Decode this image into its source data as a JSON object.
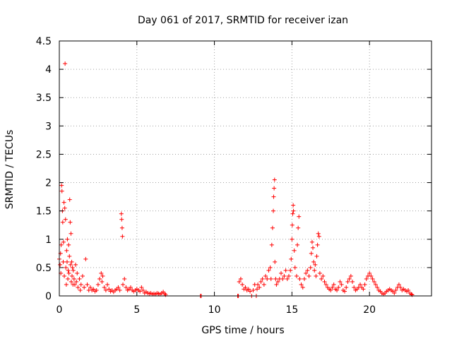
{
  "chart_data": {
    "type": "scatter",
    "title": "Day 061 of 2017, SRMTID for receiver izan",
    "xlabel": "GPS time / hours",
    "ylabel": "SRMTID / TECUs",
    "xlim": [
      0,
      24
    ],
    "ylim": [
      0,
      4.5
    ],
    "xticks": [
      0,
      5,
      10,
      15,
      20
    ],
    "xtick_labels": [
      "0",
      "5",
      "10",
      "15",
      "20"
    ],
    "yticks": [
      0,
      0.5,
      1,
      1.5,
      2,
      2.5,
      3,
      3.5,
      4,
      4.5
    ],
    "ytick_labels": [
      "0",
      "0.5",
      "1",
      "1.5",
      "2",
      "2.5",
      "3",
      "3.5",
      "4",
      "4.5"
    ],
    "grid": true,
    "marker": "+",
    "color": "#ff0000",
    "series": [
      {
        "name": "SRMTID",
        "points": [
          [
            0.0,
            0.65
          ],
          [
            0.05,
            0.55
          ],
          [
            0.08,
            0.75
          ],
          [
            0.1,
            0.4
          ],
          [
            0.12,
            0.9
          ],
          [
            0.15,
            1.95
          ],
          [
            0.17,
            1.85
          ],
          [
            0.2,
            1.5
          ],
          [
            0.22,
            1.3
          ],
          [
            0.25,
            0.6
          ],
          [
            0.27,
            0.95
          ],
          [
            0.3,
            1.65
          ],
          [
            0.32,
            0.35
          ],
          [
            0.35,
            1.55
          ],
          [
            0.37,
            4.1
          ],
          [
            0.4,
            1.35
          ],
          [
            0.42,
            0.5
          ],
          [
            0.45,
            0.2
          ],
          [
            0.47,
            0.8
          ],
          [
            0.5,
            0.6
          ],
          [
            0.52,
            1.0
          ],
          [
            0.55,
            0.3
          ],
          [
            0.57,
            0.45
          ],
          [
            0.6,
            0.9
          ],
          [
            0.62,
            0.4
          ],
          [
            0.65,
            0.7
          ],
          [
            0.67,
            1.7
          ],
          [
            0.7,
            1.3
          ],
          [
            0.72,
            0.55
          ],
          [
            0.75,
            1.1
          ],
          [
            0.77,
            0.25
          ],
          [
            0.8,
            0.6
          ],
          [
            0.82,
            0.35
          ],
          [
            0.85,
            0.5
          ],
          [
            0.88,
            0.2
          ],
          [
            0.9,
            0.45
          ],
          [
            0.95,
            0.3
          ],
          [
            1.0,
            0.2
          ],
          [
            1.05,
            0.55
          ],
          [
            1.1,
            0.25
          ],
          [
            1.15,
            0.4
          ],
          [
            1.2,
            0.15
          ],
          [
            1.3,
            0.3
          ],
          [
            1.35,
            0.1
          ],
          [
            1.4,
            0.2
          ],
          [
            1.5,
            0.35
          ],
          [
            1.6,
            0.15
          ],
          [
            1.7,
            0.65
          ],
          [
            1.8,
            0.2
          ],
          [
            1.9,
            0.1
          ],
          [
            2.0,
            0.15
          ],
          [
            2.1,
            0.1
          ],
          [
            2.2,
            0.12
          ],
          [
            2.3,
            0.08
          ],
          [
            2.4,
            0.1
          ],
          [
            2.5,
            0.2
          ],
          [
            2.6,
            0.3
          ],
          [
            2.7,
            0.4
          ],
          [
            2.75,
            0.25
          ],
          [
            2.8,
            0.35
          ],
          [
            2.9,
            0.15
          ],
          [
            3.0,
            0.1
          ],
          [
            3.1,
            0.2
          ],
          [
            3.2,
            0.12
          ],
          [
            3.3,
            0.08
          ],
          [
            3.4,
            0.1
          ],
          [
            3.5,
            0.07
          ],
          [
            3.6,
            0.1
          ],
          [
            3.7,
            0.12
          ],
          [
            3.8,
            0.15
          ],
          [
            3.9,
            0.1
          ],
          [
            4.0,
            1.45
          ],
          [
            4.02,
            1.35
          ],
          [
            4.05,
            1.2
          ],
          [
            4.07,
            1.05
          ],
          [
            4.1,
            0.2
          ],
          [
            4.2,
            0.3
          ],
          [
            4.3,
            0.15
          ],
          [
            4.4,
            0.1
          ],
          [
            4.5,
            0.12
          ],
          [
            4.6,
            0.15
          ],
          [
            4.7,
            0.1
          ],
          [
            4.8,
            0.08
          ],
          [
            4.9,
            0.1
          ],
          [
            5.0,
            0.12
          ],
          [
            5.1,
            0.1
          ],
          [
            5.2,
            0.08
          ],
          [
            5.3,
            0.15
          ],
          [
            5.4,
            0.1
          ],
          [
            5.5,
            0.05
          ],
          [
            5.6,
            0.07
          ],
          [
            5.7,
            0.05
          ],
          [
            5.8,
            0.04
          ],
          [
            5.9,
            0.05
          ],
          [
            6.0,
            0.03
          ],
          [
            6.1,
            0.04
          ],
          [
            6.2,
            0.03
          ],
          [
            6.3,
            0.05
          ],
          [
            6.4,
            0.04
          ],
          [
            6.5,
            0.03
          ],
          [
            6.6,
            0.05
          ],
          [
            6.7,
            0.07
          ],
          [
            6.8,
            0.04
          ],
          [
            6.85,
            0.02
          ],
          [
            9.1,
            0.0
          ],
          [
            9.15,
            0.0
          ],
          [
            11.5,
            0.0
          ],
          [
            11.55,
            0.0
          ],
          [
            11.6,
            0.25
          ],
          [
            11.7,
            0.3
          ],
          [
            11.8,
            0.2
          ],
          [
            11.9,
            0.12
          ],
          [
            12.0,
            0.15
          ],
          [
            12.1,
            0.1
          ],
          [
            12.2,
            0.12
          ],
          [
            12.3,
            0.08
          ],
          [
            12.4,
            0.0
          ],
          [
            12.5,
            0.1
          ],
          [
            12.6,
            0.2
          ],
          [
            12.7,
            0.0
          ],
          [
            12.75,
            0.12
          ],
          [
            12.8,
            0.2
          ],
          [
            12.9,
            0.15
          ],
          [
            13.0,
            0.25
          ],
          [
            13.1,
            0.3
          ],
          [
            13.2,
            0.2
          ],
          [
            13.3,
            0.35
          ],
          [
            13.4,
            0.3
          ],
          [
            13.5,
            0.45
          ],
          [
            13.6,
            0.5
          ],
          [
            13.65,
            0.3
          ],
          [
            13.7,
            0.9
          ],
          [
            13.75,
            1.2
          ],
          [
            13.8,
            1.5
          ],
          [
            13.82,
            1.75
          ],
          [
            13.85,
            1.9
          ],
          [
            13.88,
            2.05
          ],
          [
            13.9,
            0.6
          ],
          [
            13.95,
            0.3
          ],
          [
            14.0,
            0.2
          ],
          [
            14.1,
            0.25
          ],
          [
            14.2,
            0.3
          ],
          [
            14.3,
            0.4
          ],
          [
            14.4,
            0.3
          ],
          [
            14.5,
            0.35
          ],
          [
            14.6,
            0.45
          ],
          [
            14.7,
            0.3
          ],
          [
            14.8,
            0.35
          ],
          [
            14.9,
            0.45
          ],
          [
            14.95,
            0.65
          ],
          [
            15.0,
            1.0
          ],
          [
            15.02,
            1.25
          ],
          [
            15.05,
            1.45
          ],
          [
            15.08,
            1.6
          ],
          [
            15.1,
            1.5
          ],
          [
            15.15,
            0.8
          ],
          [
            15.2,
            0.5
          ],
          [
            15.3,
            0.35
          ],
          [
            15.35,
            0.9
          ],
          [
            15.4,
            1.2
          ],
          [
            15.45,
            1.4
          ],
          [
            15.5,
            0.3
          ],
          [
            15.6,
            0.2
          ],
          [
            15.7,
            0.15
          ],
          [
            15.8,
            0.3
          ],
          [
            15.9,
            0.4
          ],
          [
            16.0,
            0.45
          ],
          [
            16.1,
            0.35
          ],
          [
            16.2,
            0.5
          ],
          [
            16.25,
            0.75
          ],
          [
            16.3,
            0.95
          ],
          [
            16.35,
            0.85
          ],
          [
            16.4,
            0.6
          ],
          [
            16.45,
            0.45
          ],
          [
            16.5,
            0.55
          ],
          [
            16.55,
            0.35
          ],
          [
            16.6,
            0.7
          ],
          [
            16.65,
            0.9
          ],
          [
            16.7,
            1.1
          ],
          [
            16.75,
            1.05
          ],
          [
            16.8,
            0.4
          ],
          [
            16.9,
            0.3
          ],
          [
            17.0,
            0.35
          ],
          [
            17.1,
            0.25
          ],
          [
            17.2,
            0.2
          ],
          [
            17.3,
            0.15
          ],
          [
            17.4,
            0.12
          ],
          [
            17.5,
            0.1
          ],
          [
            17.6,
            0.15
          ],
          [
            17.7,
            0.2
          ],
          [
            17.8,
            0.12
          ],
          [
            17.9,
            0.1
          ],
          [
            18.0,
            0.15
          ],
          [
            18.1,
            0.25
          ],
          [
            18.2,
            0.2
          ],
          [
            18.3,
            0.1
          ],
          [
            18.4,
            0.08
          ],
          [
            18.5,
            0.15
          ],
          [
            18.6,
            0.25
          ],
          [
            18.7,
            0.3
          ],
          [
            18.8,
            0.35
          ],
          [
            18.9,
            0.25
          ],
          [
            19.0,
            0.15
          ],
          [
            19.1,
            0.1
          ],
          [
            19.2,
            0.12
          ],
          [
            19.3,
            0.15
          ],
          [
            19.4,
            0.2
          ],
          [
            19.5,
            0.15
          ],
          [
            19.6,
            0.12
          ],
          [
            19.7,
            0.2
          ],
          [
            19.8,
            0.3
          ],
          [
            19.9,
            0.35
          ],
          [
            20.0,
            0.4
          ],
          [
            20.1,
            0.35
          ],
          [
            20.2,
            0.3
          ],
          [
            20.3,
            0.25
          ],
          [
            20.4,
            0.2
          ],
          [
            20.5,
            0.15
          ],
          [
            20.6,
            0.1
          ],
          [
            20.7,
            0.08
          ],
          [
            20.8,
            0.05
          ],
          [
            20.9,
            0.03
          ],
          [
            21.0,
            0.05
          ],
          [
            21.1,
            0.08
          ],
          [
            21.2,
            0.1
          ],
          [
            21.3,
            0.12
          ],
          [
            21.4,
            0.1
          ],
          [
            21.5,
            0.08
          ],
          [
            21.6,
            0.05
          ],
          [
            21.7,
            0.1
          ],
          [
            21.8,
            0.15
          ],
          [
            21.9,
            0.2
          ],
          [
            22.0,
            0.15
          ],
          [
            22.1,
            0.1
          ],
          [
            22.2,
            0.12
          ],
          [
            22.3,
            0.1
          ],
          [
            22.4,
            0.08
          ],
          [
            22.5,
            0.1
          ],
          [
            22.6,
            0.05
          ],
          [
            22.7,
            0.03
          ],
          [
            22.75,
            0.02
          ]
        ]
      }
    ]
  }
}
